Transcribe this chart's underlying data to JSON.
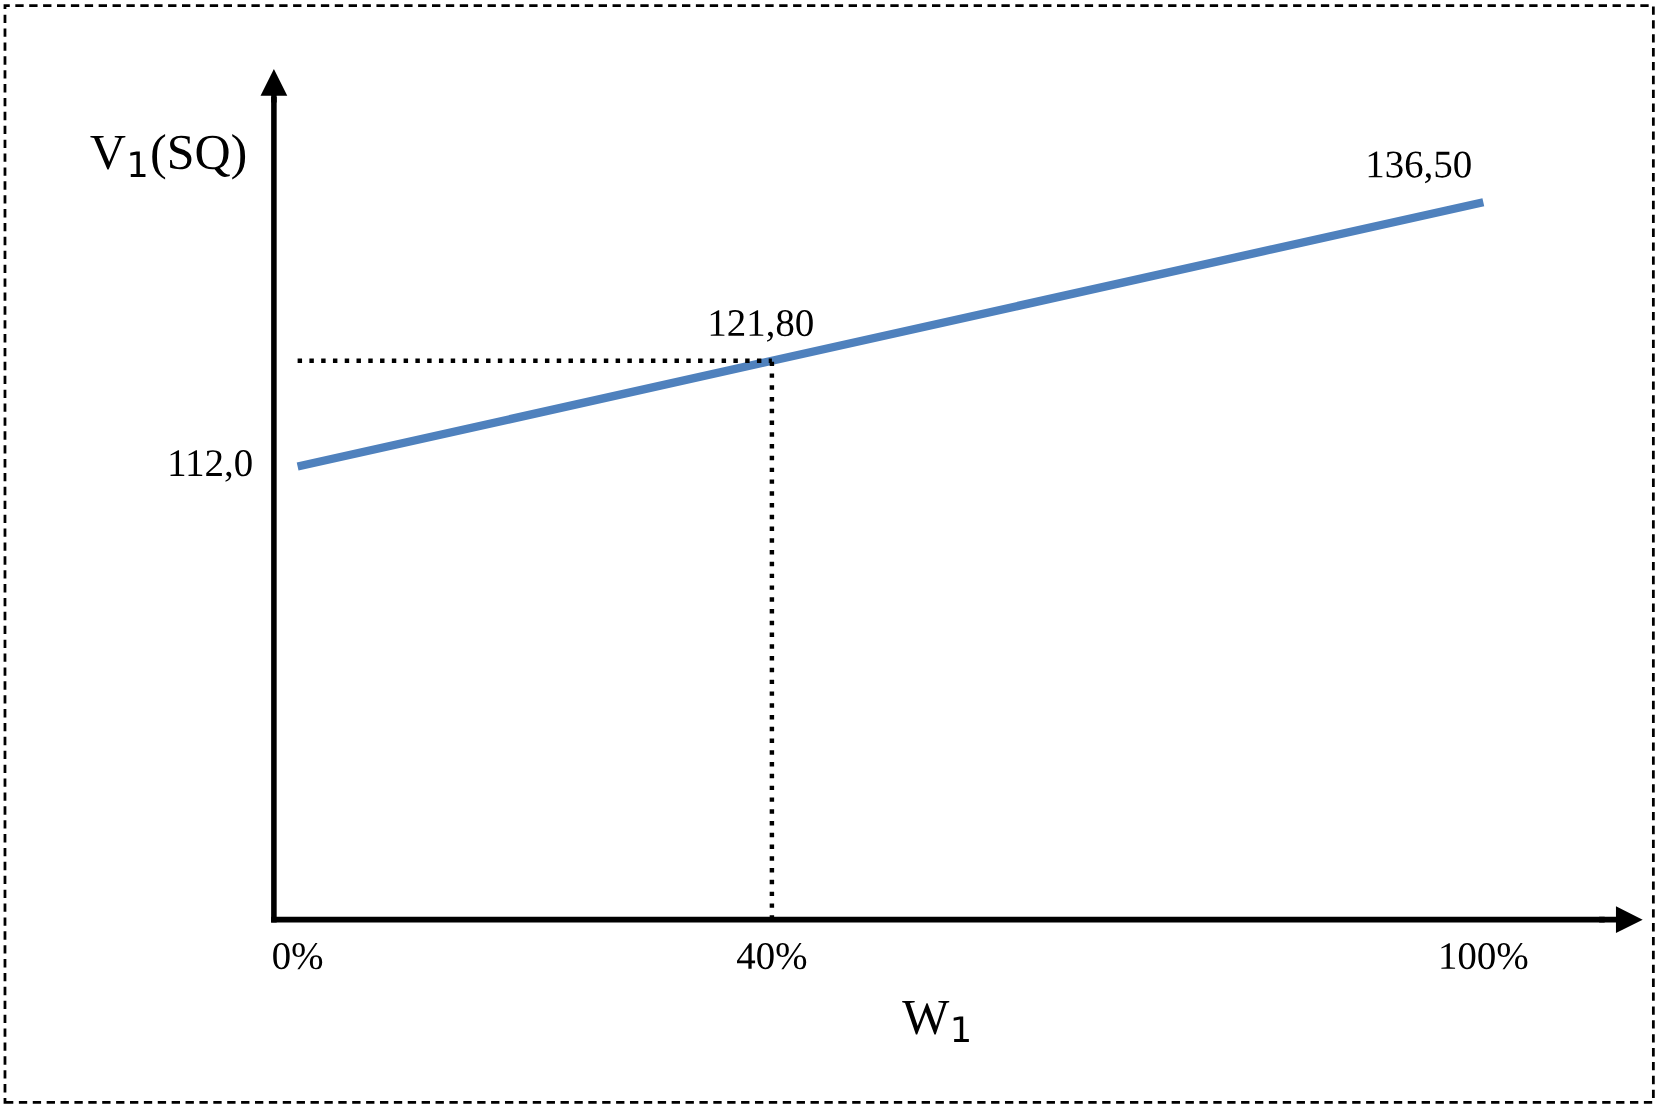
{
  "chart_data": {
    "type": "line",
    "xlabel": "W$_{1}$",
    "ylabel": "V$_{1}$(SQ)",
    "xlim": [
      -2,
      110
    ],
    "xticks": [
      {
        "value": 0,
        "label": "0%"
      },
      {
        "value": 40,
        "label": "40%"
      },
      {
        "value": 100,
        "label": "100%"
      }
    ],
    "ylim": [
      70,
      146
    ],
    "tick_labels": "x",
    "grid": false,
    "legend": false,
    "marker": "none",
    "series": [
      {
        "x": [
          0,
          40,
          100
        ],
        "values": [
          112.0,
          121.8,
          136.5
        ],
        "color": "#4f81bd",
        "line_style": "solid",
        "value_labels": [
          "112,0",
          "121,80",
          "136,50"
        ]
      },
      {
        "x": [
          0,
          40
        ],
        "values": [
          121.8,
          121.8
        ],
        "color": "#000000",
        "line_style": "dotted"
      },
      {
        "x": [
          40,
          40
        ],
        "values": [
          70,
          121.8
        ],
        "color": "#000000",
        "line_style": "dotted"
      }
    ]
  }
}
